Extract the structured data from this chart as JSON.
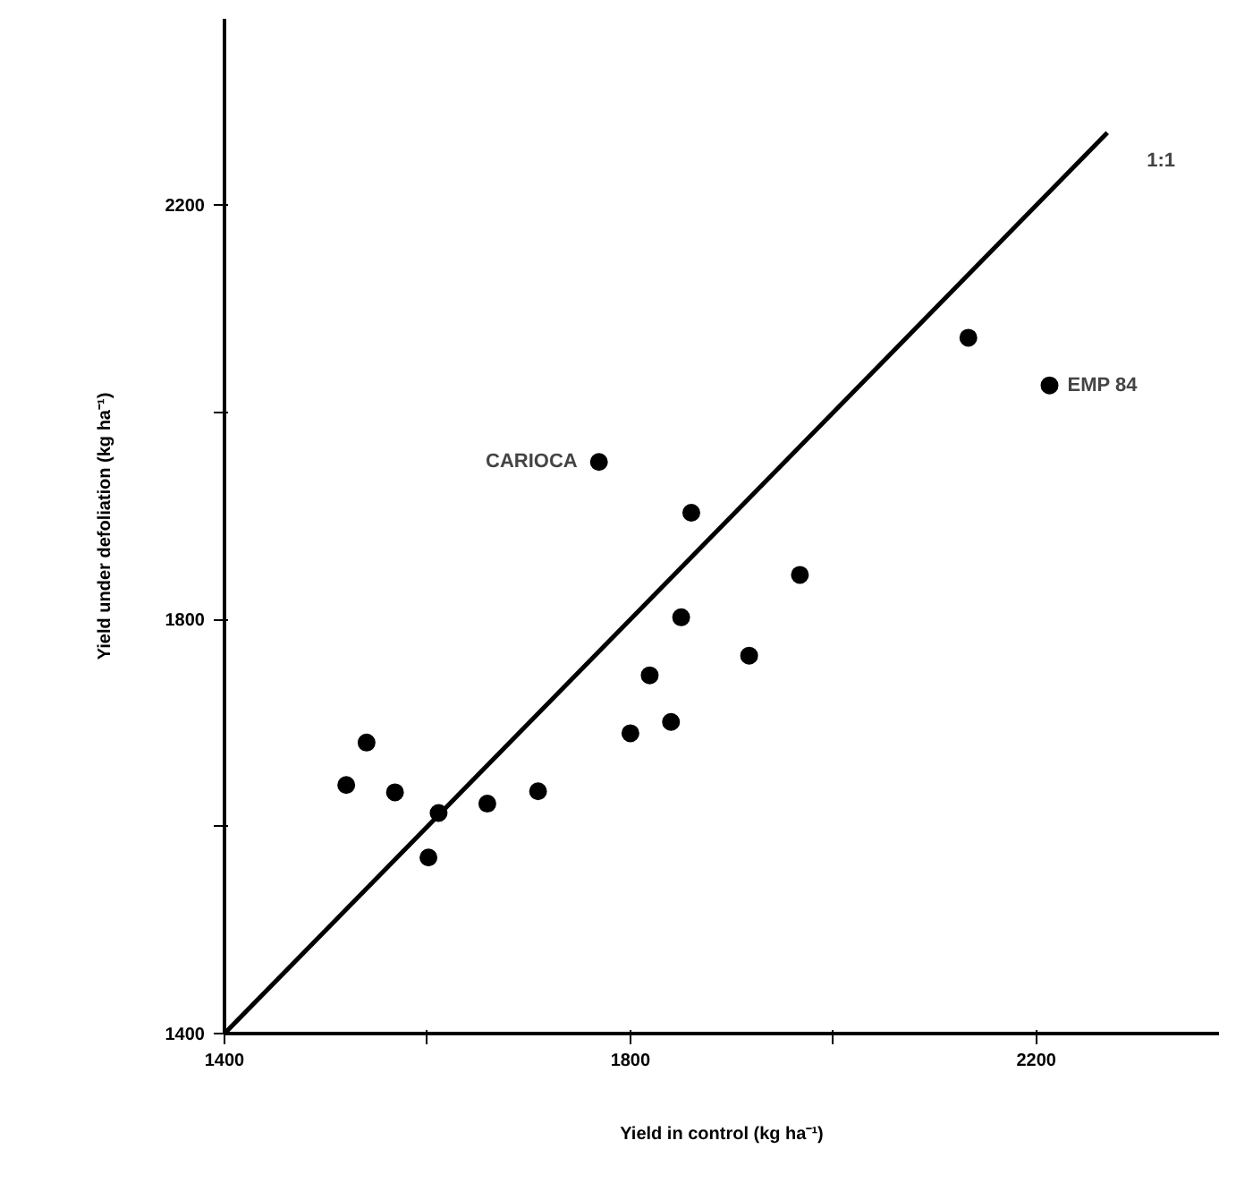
{
  "chart_data": {
    "type": "scatter",
    "xlabel": "Yield in control (kg ha⁻¹)",
    "ylabel": "Yield under defoliation (kg ha⁻¹)",
    "xlim": [
      1400,
      2380
    ],
    "ylim": [
      1400,
      2380
    ],
    "xticks": [
      1400,
      {
        "value": 1600,
        "label": null
      },
      1800,
      {
        "value": 2000,
        "label": null
      },
      2200
    ],
    "yticks": [
      1400,
      {
        "value": 1600,
        "label": null
      },
      1800,
      {
        "value": 2000,
        "label": null
      },
      2200
    ],
    "grid": false,
    "marker": "circle",
    "series": [
      {
        "color": "#000000",
        "x": [
          1520,
          1540,
          1568,
          1601,
          1611,
          1659,
          1709,
          1800,
          1819,
          1840,
          1850,
          1917,
          1967,
          1860,
          1769,
          2133,
          2213
        ],
        "values": [
          1640,
          1681,
          1633,
          1570,
          1613,
          1622,
          1634,
          1690,
          1746,
          1701,
          1802,
          1765,
          1843,
          1903,
          1952,
          2072,
          2026
        ]
      },
      {
        "type": "line",
        "name": "1:1",
        "color": "#000000",
        "marker": "none",
        "line_style": "solid",
        "x": [
          1400,
          2270
        ],
        "values": [
          1400,
          2270
        ]
      }
    ],
    "annotations": [
      {
        "text": "CARIOCA",
        "x": 1769,
        "y": 1952
      },
      {
        "text": "EMP 84",
        "x": 2213,
        "y": 2026
      }
    ]
  }
}
